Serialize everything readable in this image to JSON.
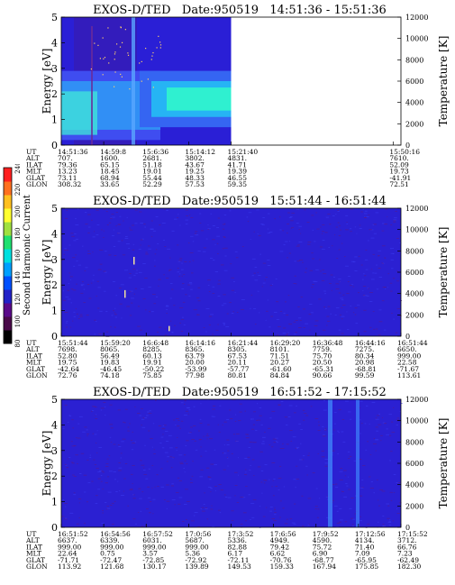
{
  "figure": {
    "colorbar": {
      "label": "Second Harmonic Current",
      "ticks": [
        "80",
        "100",
        "120",
        "140",
        "160",
        "180",
        "200",
        "220",
        "240"
      ],
      "colors": [
        "#000000",
        "#4a0a4a",
        "#5a0a8a",
        "#2222c8",
        "#0050ff",
        "#00a0ff",
        "#00e0e0",
        "#20e070",
        "#a0e040",
        "#ffff30",
        "#ffc020",
        "#ff7020",
        "#ff2020"
      ]
    }
  },
  "chart_data": [
    {
      "type": "heatmap",
      "title": "EXOS-D/TED   Date:950519   14:51:36 - 15:51:36",
      "ylabel": "Energy [eV]",
      "y2label": "Temperature [K]",
      "ylim": [
        0,
        5
      ],
      "y2lim": [
        0,
        12000
      ],
      "yticks": [
        "0",
        "1",
        "2",
        "3",
        "4",
        "5"
      ],
      "y2ticks": [
        "0",
        "2000",
        "4000",
        "6000",
        "8000",
        "10000",
        "12000"
      ],
      "data_extent": "14:51:36 - 15:21:40",
      "ephemeris": {
        "row_labels": [
          "UT",
          "ALT",
          "ILAT",
          "MLT",
          "GLAT",
          "GLON"
        ],
        "columns": [
          [
            "14:51:36",
            "707.",
            "79.36",
            "13.23",
            "73.11",
            "308.32"
          ],
          [
            "14:59:8",
            "1600.",
            "65.15",
            "18.45",
            "68.94",
            "33.65"
          ],
          [
            "15:6:36",
            "2681.",
            "51.18",
            "19.01",
            "55.44",
            "52.29"
          ],
          [
            "15:14:12",
            "3802.",
            "43.67",
            "19.25",
            "48.33",
            "57.53"
          ],
          [
            "15:21:40",
            "4831.",
            "41.71",
            "19.39",
            "46.55",
            "59.35"
          ],
          [
            "15:50:16",
            "7610.",
            "52.09",
            "19.73",
            "-41.91",
            "72.51"
          ]
        ],
        "column_fractions": [
          0,
          0.125,
          0.25,
          0.375,
          0.5,
          0.977
        ]
      }
    },
    {
      "type": "heatmap",
      "title": "EXOS-D/TED   Date:950519   15:51:44 - 16:51:44",
      "ylabel": "Energy [eV]",
      "y2label": "Temperature [K]",
      "ylim": [
        0,
        5
      ],
      "y2lim": [
        0,
        12000
      ],
      "yticks": [
        "0",
        "1",
        "2",
        "3",
        "4",
        "5"
      ],
      "y2ticks": [
        "0",
        "2000",
        "4000",
        "6000",
        "8000",
        "10000",
        "12000"
      ],
      "ephemeris": {
        "row_labels": [
          "UT",
          "ALT",
          "ILAT",
          "MLT",
          "GLAT",
          "GLON"
        ],
        "columns": [
          [
            "15:51:44",
            "7698.",
            "52.80",
            "19.75",
            "-42.64",
            "72.76"
          ],
          [
            "15:59:20",
            "8065.",
            "56.49",
            "19.83",
            "-46.45",
            "74.18"
          ],
          [
            "16:6:48",
            "8285.",
            "60.13",
            "19.91",
            "-50.22",
            "75.85"
          ],
          [
            "16:14:16",
            "8365.",
            "63.79",
            "20.00",
            "-53.99",
            "77.98"
          ],
          [
            "16:21:44",
            "8305.",
            "67.53",
            "20.11",
            "-57.77",
            "80.81"
          ],
          [
            "16:29:20",
            "8101.",
            "71.51",
            "20.27",
            "-61.60",
            "84.84"
          ],
          [
            "16:36:48",
            "7759.",
            "75.70",
            "20.50",
            "-65.31",
            "90.66"
          ],
          [
            "16:44:16",
            "7275.",
            "80.34",
            "20.98",
            "-68.81",
            "99.59"
          ],
          [
            "16:51:44",
            "6650.",
            "999.00",
            "22.58",
            "-71.67",
            "113.61"
          ]
        ],
        "column_fractions": [
          0,
          0.125,
          0.25,
          0.375,
          0.5,
          0.625,
          0.75,
          0.875,
          1.0
        ]
      }
    },
    {
      "type": "heatmap",
      "title": "EXOS-D/TED   Date:950519   16:51:52 - 17:15:52",
      "ylabel": "Energy [eV]",
      "y2label": "Temperature [K]",
      "ylim": [
        0,
        5
      ],
      "y2lim": [
        0,
        12000
      ],
      "yticks": [
        "0",
        "1",
        "2",
        "3",
        "4",
        "5"
      ],
      "y2ticks": [
        "0",
        "2000",
        "4000",
        "6000",
        "8000",
        "10000",
        "12000"
      ],
      "ephemeris": {
        "row_labels": [
          "UT",
          "ALT",
          "ILAT",
          "MLT",
          "GLAT",
          "GLON"
        ],
        "columns": [
          [
            "16:51:52",
            "6637.",
            "999.00",
            "22.64",
            "-71.71",
            "113.92"
          ],
          [
            "16:54:56",
            "6339.",
            "999.00",
            "0.75",
            "-72.47",
            "121.68"
          ],
          [
            "16:57:52",
            "6031.",
            "999.00",
            "3.57",
            "-72.85",
            "130.17"
          ],
          [
            "17:0:56",
            "5687.",
            "999.00",
            "5.36",
            "-72.92",
            "139.89"
          ],
          [
            "17:3:52",
            "5336.",
            "82.88",
            "6.17",
            "-72.11",
            "149.53"
          ],
          [
            "17:6:56",
            "4949.",
            "79.42",
            "6.62",
            "-70.76",
            "159.33"
          ],
          [
            "17:9:52",
            "4590.",
            "75.72",
            "6.90",
            "-68.77",
            "167.94"
          ],
          [
            "17:12:56",
            "4134.",
            "71.40",
            "7.09",
            "-65.95",
            "175.85"
          ],
          [
            "17:15:52",
            "3712.",
            "66.76",
            "7.23",
            "-62.49",
            "182.30"
          ]
        ],
        "column_fractions": [
          0,
          0.125,
          0.25,
          0.375,
          0.5,
          0.625,
          0.75,
          0.875,
          1.0
        ]
      }
    }
  ]
}
